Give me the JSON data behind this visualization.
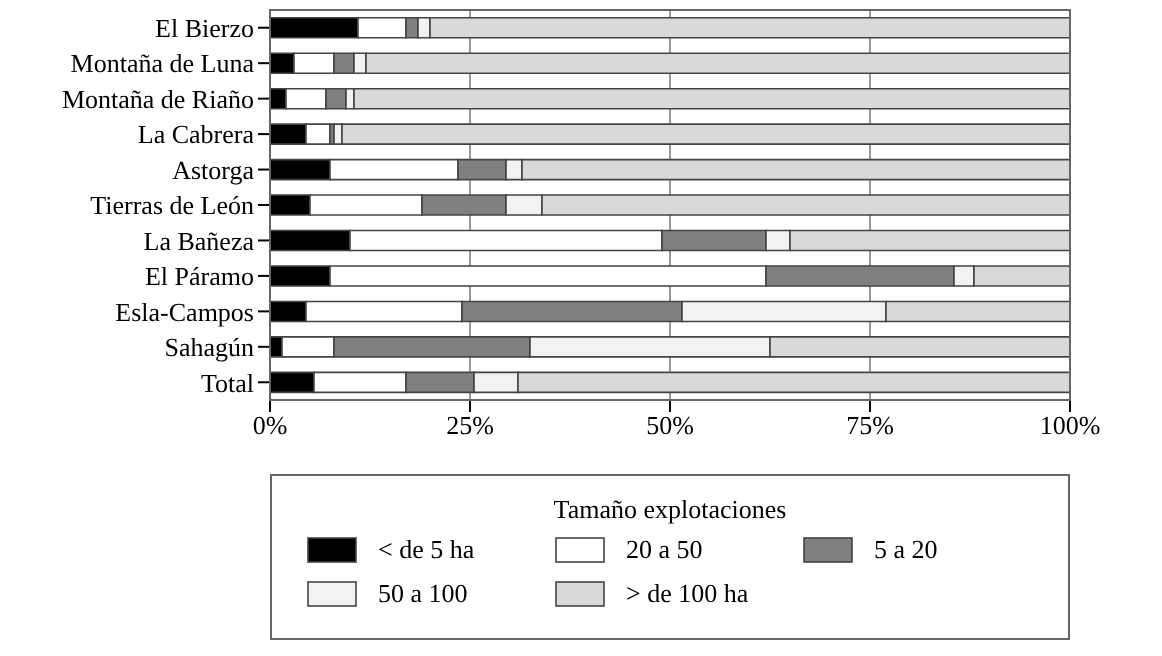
{
  "chart_data": {
    "type": "bar",
    "orientation": "horizontal",
    "stacked": true,
    "categories": [
      "El Bierzo",
      "Montaña de Luna",
      "Montaña de Riaño",
      "La Cabrera",
      "Astorga",
      "Tierras de León",
      "La Bañeza",
      "El Páramo",
      "Esla-Campos",
      "Sahagún",
      "Total"
    ],
    "series": [
      {
        "name": "< de 5 ha",
        "color": "#000000",
        "values": [
          11,
          3,
          2,
          4.5,
          7.5,
          5,
          10,
          7.5,
          4.5,
          1.5,
          5.5
        ]
      },
      {
        "name": "20 a 50",
        "color": "#ffffff",
        "values": [
          6,
          5,
          5,
          3,
          16,
          14,
          39,
          54.5,
          19.5,
          6.5,
          11.5
        ]
      },
      {
        "name": "5 a 20",
        "color": "#808080",
        "values": [
          1.5,
          2.5,
          2.5,
          0.5,
          6,
          10.5,
          13,
          23.5,
          27.5,
          24.5,
          8.5
        ]
      },
      {
        "name": "50 a 100",
        "color": "#f2f2f2",
        "values": [
          1.5,
          1.5,
          1,
          1,
          2,
          4.5,
          3,
          2.5,
          25.5,
          30,
          5.5
        ]
      },
      {
        "name": "> de 100 ha",
        "color": "#d9d9d9",
        "values": [
          80,
          88,
          89.5,
          91,
          68.5,
          66,
          35,
          12,
          23,
          37.5,
          69
        ]
      }
    ],
    "xlim": [
      0,
      100
    ],
    "xticks": [
      {
        "value": 0,
        "label": "0%"
      },
      {
        "value": 25,
        "label": "25%"
      },
      {
        "value": 50,
        "label": "50%"
      },
      {
        "value": 75,
        "label": "75%"
      },
      {
        "value": 100,
        "label": "100%"
      }
    ],
    "grid": "x",
    "legend": "bottom",
    "legend_title": "Tamaño explotaciones"
  }
}
